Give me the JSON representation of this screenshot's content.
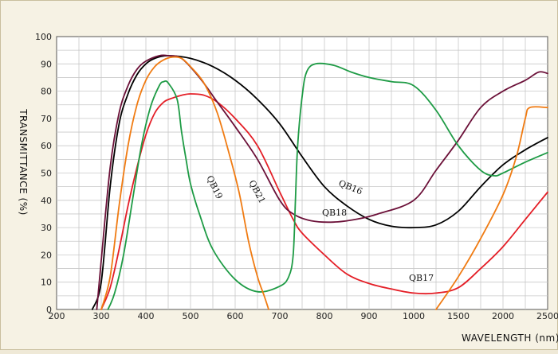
{
  "chart_data": {
    "type": "line",
    "title": "",
    "xlabel": "WAVELENGTH (nm)",
    "ylabel": "TRANSMITTANCE  (%)",
    "x_tick_labels": [
      "200",
      "300",
      "400",
      "500",
      "600",
      "700",
      "800",
      "900",
      "1000",
      "1500",
      "2000",
      "2500"
    ],
    "y_ticks": [
      0,
      10,
      20,
      30,
      40,
      50,
      60,
      70,
      80,
      90,
      100
    ],
    "ylim": [
      0,
      100
    ],
    "grid": true,
    "x_scale": "piecewise: 200-1000 nm linear at 100 nm per major division; 1000-2500 nm linear at 500 nm per major division",
    "series": [
      {
        "name": "QB16",
        "color": "#000000",
        "points": [
          [
            280,
            0
          ],
          [
            300,
            10
          ],
          [
            320,
            45
          ],
          [
            340,
            68
          ],
          [
            360,
            79
          ],
          [
            380,
            86
          ],
          [
            400,
            90
          ],
          [
            420,
            92
          ],
          [
            450,
            93
          ],
          [
            500,
            92
          ],
          [
            550,
            89
          ],
          [
            600,
            84
          ],
          [
            650,
            77
          ],
          [
            700,
            68
          ],
          [
            750,
            56
          ],
          [
            800,
            45
          ],
          [
            850,
            38
          ],
          [
            900,
            33
          ],
          [
            950,
            30.5
          ],
          [
            1000,
            30
          ],
          [
            1250,
            31
          ],
          [
            1500,
            36
          ],
          [
            1750,
            45
          ],
          [
            2000,
            53
          ],
          [
            2250,
            58.5
          ],
          [
            2500,
            63
          ]
        ]
      },
      {
        "name": "QB17",
        "color": "#e41e26",
        "points": [
          [
            300,
            0
          ],
          [
            320,
            8
          ],
          [
            340,
            22
          ],
          [
            360,
            38
          ],
          [
            380,
            52
          ],
          [
            400,
            64
          ],
          [
            420,
            72
          ],
          [
            440,
            76
          ],
          [
            460,
            77.5
          ],
          [
            480,
            78.5
          ],
          [
            500,
            79
          ],
          [
            530,
            78.5
          ],
          [
            560,
            76
          ],
          [
            600,
            70
          ],
          [
            650,
            60
          ],
          [
            700,
            43
          ],
          [
            730,
            33
          ],
          [
            750,
            28
          ],
          [
            800,
            20
          ],
          [
            850,
            13
          ],
          [
            900,
            9.5
          ],
          [
            950,
            7.5
          ],
          [
            1000,
            6
          ],
          [
            1250,
            6
          ],
          [
            1500,
            8
          ],
          [
            1750,
            15
          ],
          [
            2000,
            23
          ],
          [
            2250,
            33
          ],
          [
            2500,
            43
          ]
        ]
      },
      {
        "name": "QB18",
        "color": "#6b1038",
        "points": [
          [
            290,
            0
          ],
          [
            300,
            18
          ],
          [
            320,
            52
          ],
          [
            340,
            72
          ],
          [
            360,
            82
          ],
          [
            380,
            88
          ],
          [
            400,
            91
          ],
          [
            430,
            93
          ],
          [
            450,
            93
          ],
          [
            480,
            92
          ],
          [
            520,
            85
          ],
          [
            560,
            76
          ],
          [
            600,
            67
          ],
          [
            650,
            55
          ],
          [
            700,
            40
          ],
          [
            730,
            35
          ],
          [
            770,
            32.5
          ],
          [
            820,
            32
          ],
          [
            870,
            33
          ],
          [
            920,
            35
          ],
          [
            1000,
            40
          ],
          [
            1250,
            51
          ],
          [
            1500,
            62
          ],
          [
            1750,
            74
          ],
          [
            2000,
            80
          ],
          [
            2250,
            84
          ],
          [
            2400,
            87
          ],
          [
            2500,
            86.5
          ]
        ]
      },
      {
        "name": "QB19",
        "color": "#1e9b45",
        "points": [
          [
            315,
            0
          ],
          [
            330,
            6
          ],
          [
            350,
            20
          ],
          [
            370,
            40
          ],
          [
            390,
            60
          ],
          [
            410,
            74
          ],
          [
            430,
            82
          ],
          [
            440,
            83.5
          ],
          [
            450,
            83
          ],
          [
            470,
            77
          ],
          [
            480,
            65
          ],
          [
            490,
            55
          ],
          [
            500,
            46
          ],
          [
            520,
            35
          ],
          [
            550,
            22
          ],
          [
            600,
            11
          ],
          [
            650,
            6.5
          ],
          [
            700,
            8.5
          ],
          [
            720,
            12
          ],
          [
            730,
            20
          ],
          [
            735,
            40
          ],
          [
            740,
            60
          ],
          [
            750,
            78
          ],
          [
            760,
            87
          ],
          [
            780,
            90
          ],
          [
            820,
            89.5
          ],
          [
            860,
            87
          ],
          [
            900,
            85
          ],
          [
            950,
            83.5
          ],
          [
            1000,
            82
          ],
          [
            1250,
            73
          ],
          [
            1500,
            60
          ],
          [
            1750,
            51
          ],
          [
            1900,
            49
          ],
          [
            2000,
            50
          ],
          [
            2250,
            54
          ],
          [
            2500,
            57.5
          ]
        ]
      },
      {
        "name": "QB21",
        "color": "#f07b12",
        "points": [
          [
            300,
            0
          ],
          [
            320,
            12
          ],
          [
            340,
            38
          ],
          [
            360,
            60
          ],
          [
            380,
            75
          ],
          [
            400,
            84
          ],
          [
            420,
            89
          ],
          [
            440,
            91.5
          ],
          [
            460,
            92.5
          ],
          [
            480,
            92
          ],
          [
            500,
            89
          ],
          [
            530,
            83
          ],
          [
            560,
            72
          ],
          [
            590,
            55
          ],
          [
            610,
            42
          ],
          [
            630,
            25
          ],
          [
            650,
            12
          ],
          [
            665,
            5
          ],
          [
            675,
            0
          ]
        ],
        "segments": [
          [
            [
              1250,
              0
            ],
            [
              1500,
              12
            ],
            [
              1750,
              26
            ],
            [
              2000,
              42
            ],
            [
              2150,
              56
            ],
            [
              2250,
              70
            ],
            [
              2300,
              74
            ],
            [
              2500,
              74
            ]
          ]
        ]
      }
    ],
    "annotations": [
      {
        "text": "QB16"
      },
      {
        "text": "QB17"
      },
      {
        "text": "QB18"
      },
      {
        "text": "QB19"
      },
      {
        "text": "QB21"
      }
    ]
  }
}
